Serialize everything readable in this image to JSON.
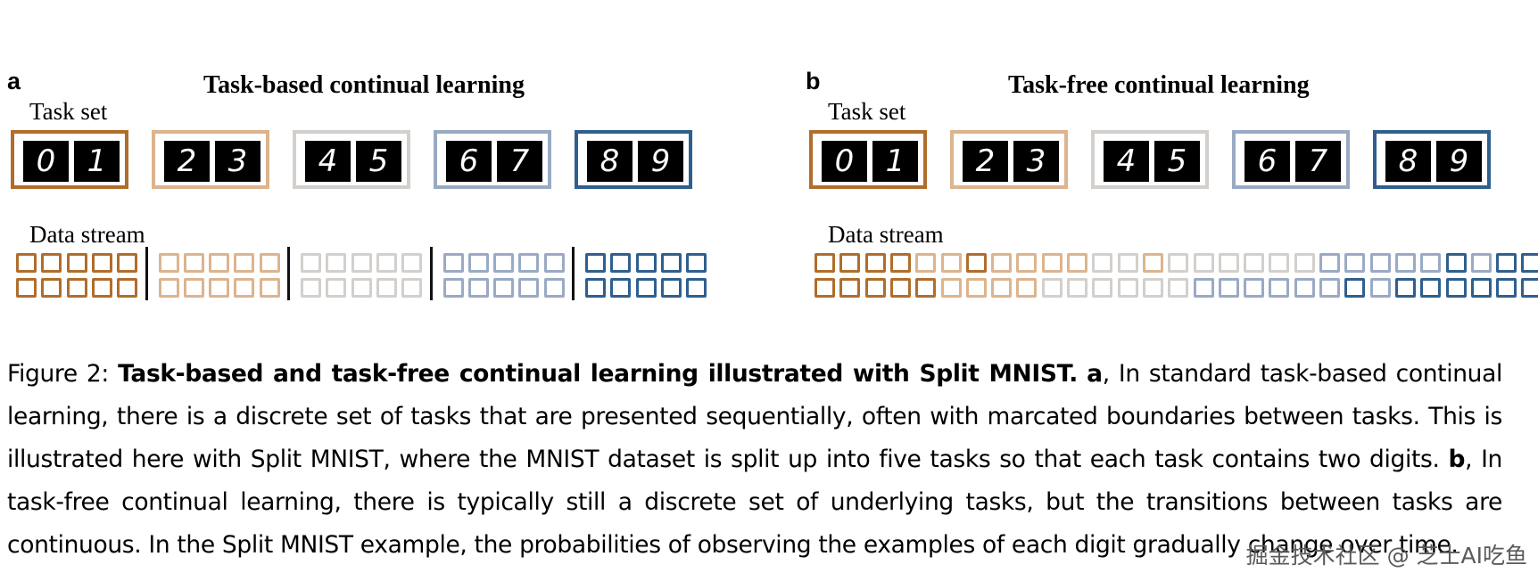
{
  "colors": [
    "#b06d2b",
    "#dcb48e",
    "#d2cfcc",
    "#9aaac4",
    "#2e5f8f"
  ],
  "panel_a": {
    "letter": "a",
    "title": "Task-based continual learning",
    "task_set_label": "Task set",
    "data_stream_label": "Data stream",
    "tasks": [
      {
        "digits": [
          "0",
          "1"
        ]
      },
      {
        "digits": [
          "2",
          "3"
        ]
      },
      {
        "digits": [
          "4",
          "5"
        ]
      },
      {
        "digits": [
          "6",
          "7"
        ]
      },
      {
        "digits": [
          "8",
          "9"
        ]
      }
    ],
    "stream": {
      "row1": [
        0,
        0,
        0,
        0,
        0,
        1,
        1,
        1,
        1,
        1,
        2,
        2,
        2,
        2,
        2,
        3,
        3,
        3,
        3,
        3,
        4,
        4,
        4,
        4,
        4
      ],
      "row2": [
        0,
        0,
        0,
        0,
        0,
        1,
        1,
        1,
        1,
        1,
        2,
        2,
        2,
        2,
        2,
        3,
        3,
        3,
        3,
        3,
        4,
        4,
        4,
        4,
        4
      ],
      "boundaries_after": [
        5,
        10,
        15,
        20
      ]
    }
  },
  "panel_b": {
    "letter": "b",
    "title": "Task-free continual learning",
    "task_set_label": "Task set",
    "data_stream_label": "Data stream",
    "tasks": [
      {
        "digits": [
          "0",
          "1"
        ]
      },
      {
        "digits": [
          "2",
          "3"
        ]
      },
      {
        "digits": [
          "4",
          "5"
        ]
      },
      {
        "digits": [
          "6",
          "7"
        ]
      },
      {
        "digits": [
          "8",
          "9"
        ]
      }
    ],
    "stream": {
      "row1": [
        0,
        0,
        0,
        0,
        1,
        1,
        0,
        1,
        1,
        1,
        1,
        2,
        2,
        1,
        2,
        2,
        2,
        2,
        2,
        2,
        3,
        3,
        3,
        3,
        3,
        4,
        3,
        4,
        4,
        4
      ],
      "row2": [
        0,
        0,
        0,
        0,
        0,
        1,
        1,
        1,
        1,
        2,
        2,
        2,
        2,
        2,
        2,
        3,
        3,
        3,
        3,
        3,
        3,
        4,
        3,
        4,
        4,
        4,
        4,
        4,
        4,
        4
      ],
      "boundaries_after": []
    }
  },
  "caption": {
    "prefix": "Figure 2: ",
    "bold_title": "Task-based and task-free continual learning illustrated with Split MNIST.",
    "a_label": "a",
    "a_text": ", In standard task-based continual learning, there is a discrete set of tasks that are presented sequentially, often with marcated boundaries between tasks. This is illustrated here with Split MNIST, where the MNIST dataset is split up into five tasks so that each task contains two digits. ",
    "b_label": "b",
    "b_text": ", In task-free continual learning, there is typically still a discrete set of underlying tasks, but the transitions between tasks are continuous. In the Split MNIST example, the probabilities of observing the examples of each digit gradually change over time."
  },
  "watermark": "掘金技术社区 @ 芝士AI吃鱼"
}
